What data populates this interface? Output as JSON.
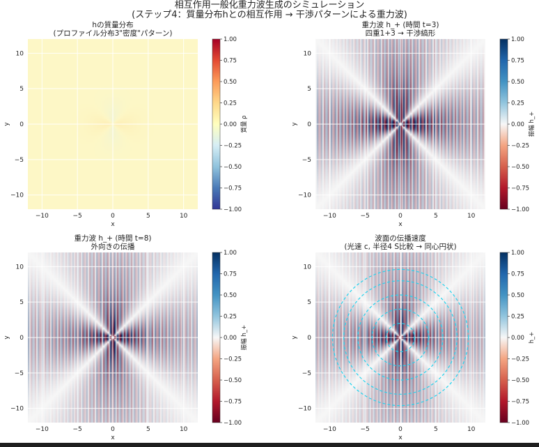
{
  "figure": {
    "title_line1": "相互作用一般化重力波生成のシミュレーション",
    "title_line2": "(ステップ4：質量分布hとの相互作用 → 干渉パターンによる重力波)"
  },
  "colors": {
    "diverging_positive": "#08306b",
    "diverging_negative": "#67001f",
    "neutral": "#f7f7f7",
    "circle": "#22d3ee",
    "panel_a_fill": "#fdf7c6"
  },
  "chart_data": [
    {
      "type": "heatmap",
      "id": "panel-a",
      "title_line1": "hの質量分布",
      "title_line2": "(プロファイル分布3\"密度\"パターン)",
      "xlabel": "x",
      "ylabel": "y",
      "xlim": [
        -12,
        12
      ],
      "ylim": [
        -12,
        12
      ],
      "xticks": [
        "−10",
        "−5",
        "0",
        "5",
        "10"
      ],
      "yticks": [
        "10",
        "5",
        "0",
        "−5",
        "−10"
      ],
      "colorbar": {
        "label": "質量 ρ",
        "range": [
          -1.0,
          1.0
        ],
        "ticks": [
          "1.00",
          "0.75",
          "0.50",
          "0.25",
          "0.00",
          "−0.25",
          "−0.50",
          "−0.75",
          "−1.00"
        ],
        "colormap": "RdYlBu_r"
      }
    },
    {
      "type": "heatmap",
      "id": "panel-b",
      "title_line1": "重力波 h_+ (時間 t=3)",
      "title_line2": "四重1+3 → 干渉縞形",
      "xlabel": "x",
      "ylabel": "y",
      "xlim": [
        -12,
        12
      ],
      "ylim": [
        -12,
        12
      ],
      "xticks": [
        "−10",
        "−5",
        "0",
        "5",
        "10"
      ],
      "yticks": [
        "10",
        "5",
        "0",
        "−5",
        "−10"
      ],
      "colorbar": {
        "label": "振幅 h_+",
        "range": [
          -1.0,
          1.0
        ],
        "ticks": [
          "1.00",
          "0.75",
          "0.50",
          "0.25",
          "0.00",
          "−0.25",
          "−0.50",
          "−0.75",
          "−1.00"
        ],
        "colormap": "RdBu"
      }
    },
    {
      "type": "heatmap",
      "id": "panel-c",
      "title_line1": "重力波 h_+ (時間 t=8)",
      "title_line2": "外向きの伝播",
      "xlabel": "x",
      "ylabel": "y",
      "xlim": [
        -12,
        12
      ],
      "ylim": [
        -12,
        12
      ],
      "xticks": [
        "−10",
        "−5",
        "0",
        "5",
        "10"
      ],
      "yticks": [
        "10",
        "5",
        "0",
        "−5",
        "−10"
      ],
      "colorbar": {
        "label": "振幅 h_+",
        "range": [
          -1.0,
          1.0
        ],
        "ticks": [
          "1.00",
          "0.75",
          "0.50",
          "0.25",
          "0.00",
          "−0.25",
          "−0.50",
          "−0.75",
          "−1.00"
        ],
        "colormap": "RdBu"
      }
    },
    {
      "type": "heatmap",
      "id": "panel-d",
      "title_line1": "波面の伝播速度",
      "title_line2": "(光速 c, 半径4 S比較 → 同心円状)",
      "xlabel": "x",
      "ylabel": "y",
      "xlim": [
        -12,
        12
      ],
      "ylim": [
        -12,
        12
      ],
      "xticks": [
        "−10",
        "−5",
        "0",
        "5",
        "10"
      ],
      "yticks": [
        "10",
        "5",
        "0",
        "−5",
        "−10"
      ],
      "circle_radii": [
        2,
        4,
        6,
        8,
        9.6
      ],
      "colorbar": {
        "label": "h_+",
        "range": [
          -1.0,
          1.0
        ],
        "ticks": [
          "1.00",
          "0.75",
          "0.50",
          "0.25",
          "0.00",
          "−0.25",
          "−0.50",
          "−0.75",
          "−1.00"
        ],
        "colormap": "RdBu"
      }
    }
  ]
}
